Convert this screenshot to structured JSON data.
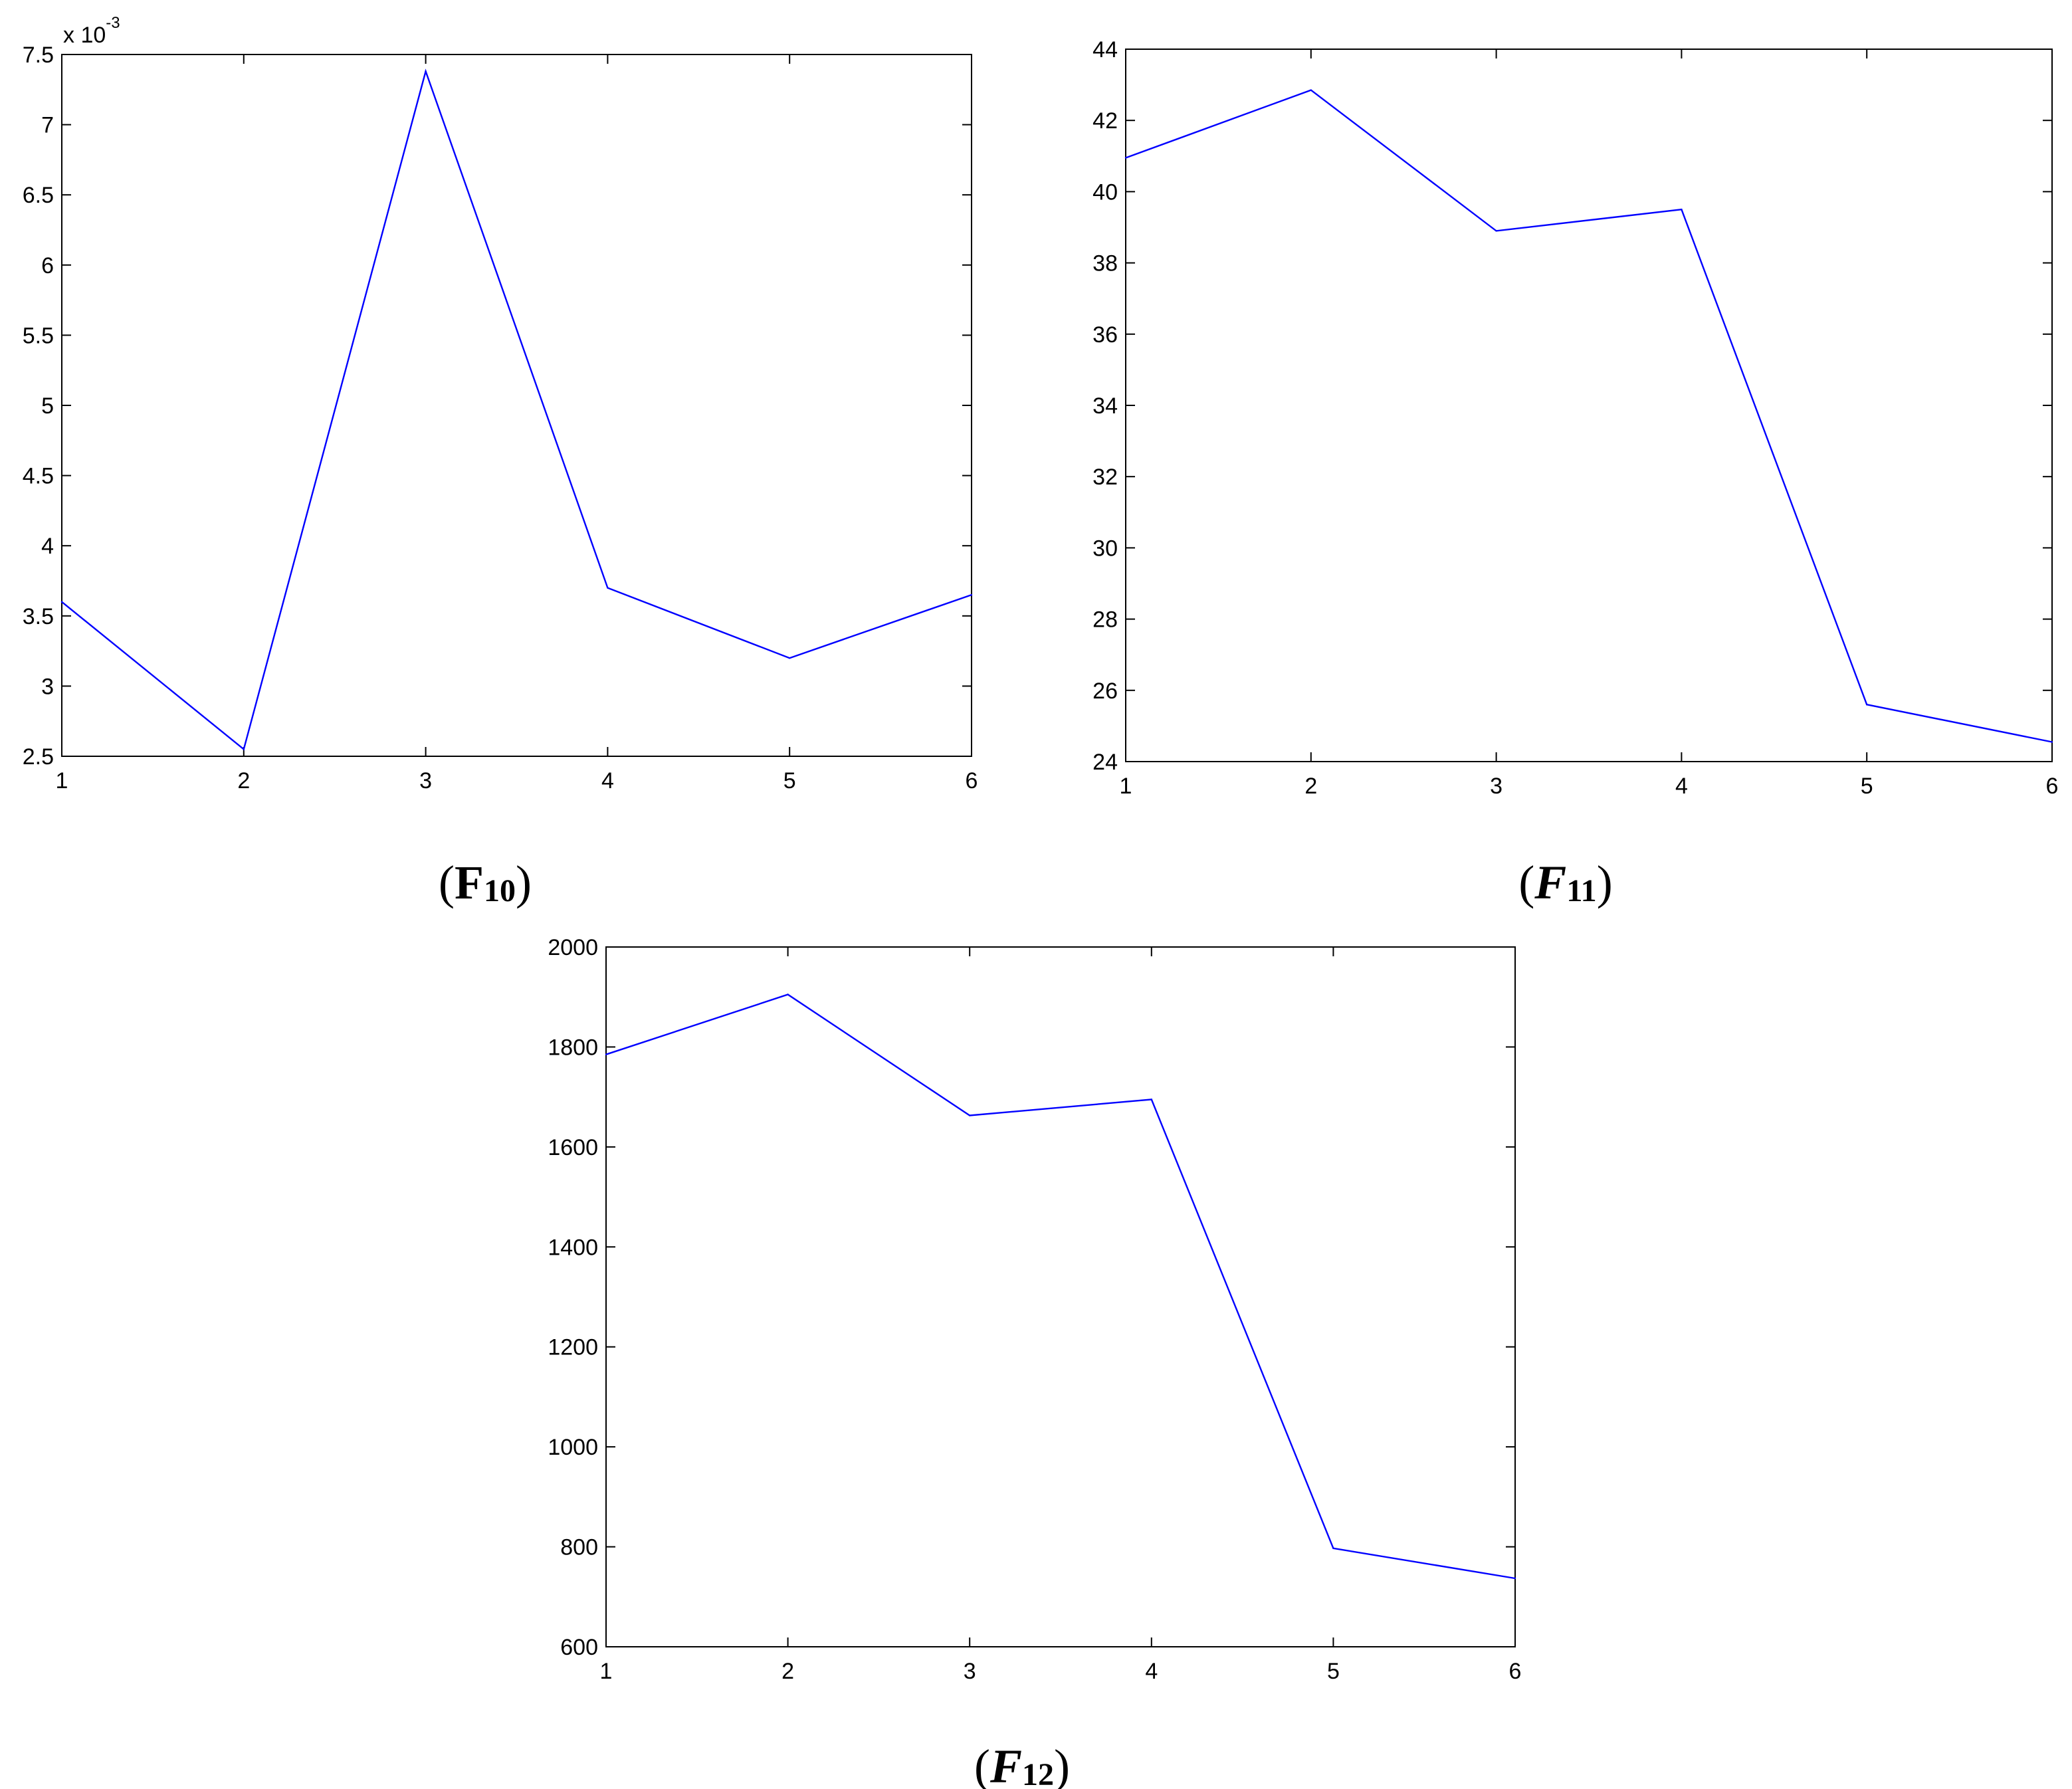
{
  "chart_data": [
    {
      "type": "line",
      "title": "",
      "caption": {
        "open": "(",
        "letter": "F",
        "sub": "10",
        "close": ")",
        "italic": false
      },
      "xlabel": "",
      "ylabel": "",
      "exponent_label": {
        "base": "x 10",
        "power": "-3"
      },
      "xlim": [
        1,
        6
      ],
      "ylim": [
        2.5,
        7.5
      ],
      "x_ticks": [
        1,
        2,
        3,
        4,
        5,
        6
      ],
      "y_ticks": [
        2.5,
        3,
        3.5,
        4,
        4.5,
        5,
        5.5,
        6,
        6.5,
        7,
        7.5
      ],
      "x_tick_labels": [
        "1",
        "2",
        "3",
        "4",
        "5",
        "6"
      ],
      "y_tick_labels": [
        "2.5",
        "3",
        "3.5",
        "4",
        "4.5",
        "5",
        "5.5",
        "6",
        "6.5",
        "7",
        "7.5"
      ],
      "series": [
        {
          "color": "#0000ff",
          "x": [
            1,
            2,
            3,
            4,
            5,
            6
          ],
          "values": [
            3.6,
            2.55,
            7.38,
            3.7,
            3.2,
            3.65
          ]
        }
      ],
      "grid": false
    },
    {
      "type": "line",
      "title": "",
      "caption": {
        "open": "(",
        "letter": "F",
        "sub": "11",
        "close": ")",
        "italic": true
      },
      "xlabel": "",
      "ylabel": "",
      "xlim": [
        1,
        6
      ],
      "ylim": [
        24,
        44
      ],
      "x_ticks": [
        1,
        2,
        3,
        4,
        5,
        6
      ],
      "y_ticks": [
        24,
        26,
        28,
        30,
        32,
        34,
        36,
        38,
        40,
        42,
        44
      ],
      "x_tick_labels": [
        "1",
        "2",
        "3",
        "4",
        "5",
        "6"
      ],
      "y_tick_labels": [
        "24",
        "26",
        "28",
        "30",
        "32",
        "34",
        "36",
        "38",
        "40",
        "42",
        "44"
      ],
      "series": [
        {
          "color": "#0000ff",
          "x": [
            1,
            2,
            3,
            4,
            5,
            6
          ],
          "values": [
            40.95,
            42.85,
            38.9,
            39.5,
            25.6,
            24.55
          ]
        }
      ],
      "grid": false
    },
    {
      "type": "line",
      "title": "",
      "caption": {
        "open": "(",
        "letter": "F",
        "sub": "12",
        "close": ")",
        "italic": true
      },
      "xlabel": "",
      "ylabel": "",
      "xlim": [
        1,
        6
      ],
      "ylim": [
        600,
        2000
      ],
      "x_ticks": [
        1,
        2,
        3,
        4,
        5,
        6
      ],
      "y_ticks": [
        600,
        800,
        1000,
        1200,
        1400,
        1600,
        1800,
        2000
      ],
      "x_tick_labels": [
        "1",
        "2",
        "3",
        "4",
        "5",
        "6"
      ],
      "y_tick_labels": [
        "600",
        "800",
        "1000",
        "1200",
        "1400",
        "1600",
        "1800",
        "2000"
      ],
      "series": [
        {
          "color": "#0000ff",
          "x": [
            1,
            2,
            3,
            4,
            5,
            6
          ],
          "values": [
            1785,
            1905,
            1663,
            1695,
            797,
            737
          ]
        }
      ],
      "grid": false
    }
  ]
}
